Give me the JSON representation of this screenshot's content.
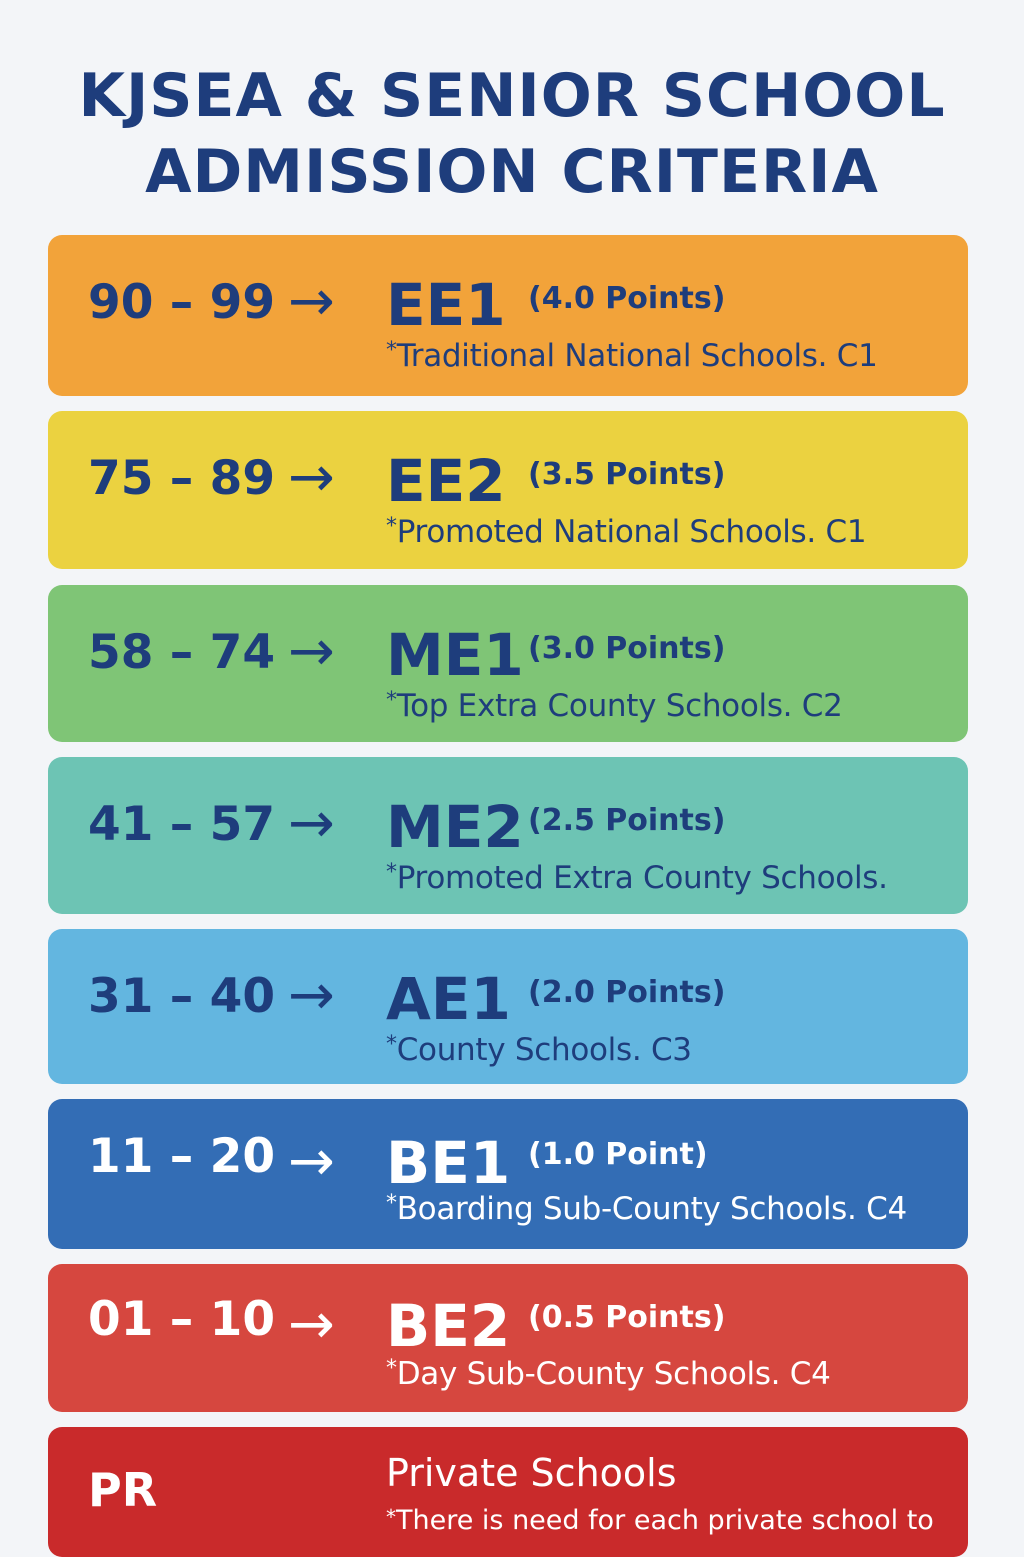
{
  "title": {
    "line1": "KJSEA & SENIOR SCHOOL",
    "line2": "ADMISSION CRITERIA"
  },
  "arrow": "→",
  "colors": {
    "title": "#1e3d7c",
    "ee1": "#f2a33a",
    "ee2": "#ebd240",
    "me1": "#7fc576",
    "me2": "#6dc4b4",
    "ae1": "#63b6e0",
    "be1": "#336db5",
    "be2": "#d6473f",
    "pr": "#c92a2b"
  },
  "rows": [
    {
      "range": "90 – 99",
      "grade": "EE1",
      "points": "(4.0 Points)",
      "star": "*",
      "desc": "Traditional National Schools. C1"
    },
    {
      "range": "75 – 89",
      "grade": "EE2",
      "points": "(3.5 Points)",
      "star": "*",
      "desc": "Promoted National Schools. C1"
    },
    {
      "range": "58 – 74",
      "grade": "ME1",
      "points": "(3.0 Points)",
      "star": "*",
      "desc": "Top Extra County Schools. C2"
    },
    {
      "range": "41 – 57",
      "grade": "ME2",
      "points": "(2.5 Points)",
      "star": "*",
      "desc": "Promoted Extra County Schools."
    },
    {
      "range": "31 – 40",
      "grade": "AE1",
      "points": "(2.0 Points)",
      "star": "*",
      "desc": "County Schools. C3"
    },
    {
      "range": "11 – 20",
      "grade": "BE1",
      "points": "(1.0 Point)",
      "star": "*",
      "desc": "Boarding Sub-County Schools. C4"
    },
    {
      "range": "01 – 10",
      "grade": "BE2",
      "points": "(0.5 Points)",
      "star": "*",
      "desc": "Day Sub-County Schools. C4"
    }
  ],
  "private": {
    "code": "PR",
    "title": "Private Schools",
    "star": "*",
    "desc": "There is need for each private school to"
  }
}
